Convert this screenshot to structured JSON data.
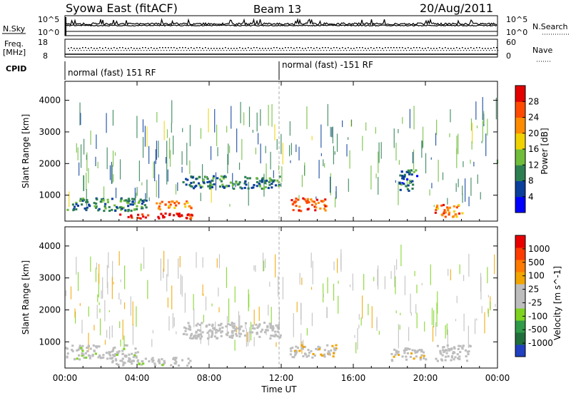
{
  "header": {
    "station": "Syowa East (fitACF)",
    "beam": "Beam 13",
    "date": "20/Aug/2011"
  },
  "top_panel": {
    "left_label": "N.Sky",
    "left_ticks": [
      "10^5",
      "10^0"
    ],
    "right_label": "N.Search",
    "right_ticks": [
      "10^5",
      "10^0"
    ]
  },
  "freq_panel": {
    "left_label_1": "Freq.",
    "left_label_2": "[MHz]",
    "left_ticks": [
      "18",
      "8"
    ],
    "right_label": "Nave",
    "right_ticks": [
      "60",
      "0"
    ]
  },
  "cpid": {
    "label": "CPID",
    "segments": [
      {
        "label": "normal (fast) 151 RF",
        "start_hour": 0,
        "end_hour": 12
      },
      {
        "label": "normal (fast) -151 RF",
        "start_hour": 12,
        "end_hour": 24
      }
    ]
  },
  "x_axis": {
    "label": "Time UT",
    "tick_labels": [
      "00:00",
      "04:00",
      "08:00",
      "12:00",
      "16:00",
      "20:00",
      "00:00"
    ]
  },
  "power_panel": {
    "ylabel": "Slant Range [km]",
    "y_ticks": [
      "4000",
      "3000",
      "2000",
      "1000"
    ],
    "colorbar_label": "Power [dB]",
    "colorbar_ticks": [
      "28",
      "24",
      "20",
      "16",
      "12",
      "8",
      "4"
    ],
    "colors": [
      "#0000ff",
      "#0a3f9c",
      "#2d7f52",
      "#6fbd3b",
      "#f0d200",
      "#ff8c00",
      "#ff4a00",
      "#e30000"
    ]
  },
  "velocity_panel": {
    "ylabel": "Slant Range [km]",
    "y_ticks": [
      "4000",
      "3000",
      "2000",
      "1000"
    ],
    "colorbar_label": "Velocity [m s^-1]",
    "colorbar_ticks": [
      "1000",
      "500",
      "100",
      "25",
      "-25",
      "-100",
      "-500",
      "-1000"
    ],
    "colors": [
      "#2040c0",
      "#1f6e3c",
      "#2f9a48",
      "#7ed321",
      "#bdbdbd",
      "#bdbdbd",
      "#f2a500",
      "#ff7a00",
      "#ff3c00",
      "#e80000"
    ]
  },
  "chart_data": [
    {
      "type": "heatmap",
      "title": "Power",
      "xlabel": "Time UT",
      "ylabel": "Slant Range [km]",
      "xlim": [
        0,
        24
      ],
      "ylim": [
        180,
        4600
      ],
      "colorbar": "Power [dB]",
      "colorbar_range": [
        0,
        30
      ],
      "features": [
        {
          "t0": 0.0,
          "t1": 4.5,
          "r0": 500,
          "r1": 900,
          "value": 10
        },
        {
          "t0": 3.0,
          "t1": 7.2,
          "r0": 250,
          "r1": 420,
          "value": 27
        },
        {
          "t0": 5.0,
          "t1": 7.0,
          "r0": 550,
          "r1": 800,
          "value": 22
        },
        {
          "t0": 6.5,
          "t1": 12.0,
          "r0": 1200,
          "r1": 1600,
          "value": 9
        },
        {
          "t0": 12.5,
          "t1": 14.5,
          "r0": 500,
          "r1": 900,
          "value": 24
        },
        {
          "t0": 18.5,
          "t1": 19.5,
          "r0": 1100,
          "r1": 1800,
          "value": 8
        },
        {
          "t0": 20.5,
          "t1": 22.0,
          "r0": 300,
          "r1": 700,
          "value": 22
        }
      ]
    },
    {
      "type": "heatmap",
      "title": "Velocity",
      "xlabel": "Time UT",
      "ylabel": "Slant Range [km]",
      "xlim": [
        0,
        24
      ],
      "ylim": [
        180,
        4600
      ],
      "colorbar": "Velocity [m s^-1]",
      "colorbar_range": [
        -1000,
        1000
      ],
      "features": [
        {
          "t0": 0.0,
          "t1": 4.0,
          "r0": 450,
          "r1": 900,
          "value": -80
        },
        {
          "t0": 2.5,
          "t1": 7.0,
          "r0": 250,
          "r1": 500,
          "value": -60
        },
        {
          "t0": 6.5,
          "t1": 12.0,
          "r0": 1100,
          "r1": 1600,
          "value": 0
        },
        {
          "t0": 12.3,
          "t1": 15.0,
          "r0": 500,
          "r1": 900,
          "value": 110
        },
        {
          "t0": 18.0,
          "t1": 20.0,
          "r0": 400,
          "r1": 800,
          "value": 120
        },
        {
          "t0": 20.5,
          "t1": 22.5,
          "r0": 400,
          "r1": 900,
          "value": 0
        }
      ]
    }
  ]
}
